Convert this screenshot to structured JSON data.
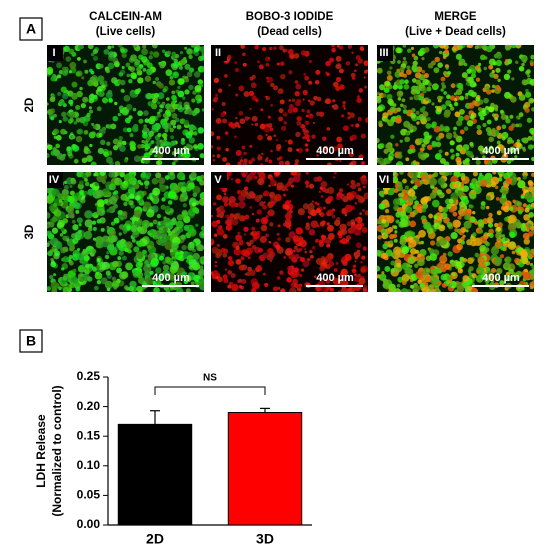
{
  "panel_a": {
    "label": "A",
    "columns": [
      {
        "title": "CALCEIN-AM",
        "subtitle": "(Live cells)"
      },
      {
        "title": "BOBO-3 IODIDE",
        "subtitle": "(Dead cells)"
      },
      {
        "title": "MERGE",
        "subtitle": "(Live + Dead cells)"
      }
    ],
    "rows": [
      "2D",
      "3D"
    ],
    "image_labels": [
      "I",
      "II",
      "III",
      "IV",
      "V",
      "VI"
    ],
    "scale_bar": "400 µm"
  },
  "panel_b": {
    "label": "B"
  },
  "chart_data": {
    "type": "bar",
    "ylabel": [
      "LDH Release",
      "(Normalized to control)"
    ],
    "categories": [
      "2D",
      "3D"
    ],
    "values": [
      0.17,
      0.19
    ],
    "errors": [
      0.023,
      0.007
    ],
    "colors": [
      "#000000",
      "#ff0000"
    ],
    "annotation": "NS",
    "ylim": [
      0,
      0.25
    ],
    "yticks": [
      {
        "value": 0,
        "label": "0.00"
      },
      {
        "value": 0.05,
        "label": "0.05"
      },
      {
        "value": 0.1,
        "label": "0.10"
      },
      {
        "value": 0.15,
        "label": "0.15"
      },
      {
        "value": 0.2,
        "label": "0.20"
      },
      {
        "value": 0.25,
        "label": "0.25"
      }
    ]
  }
}
